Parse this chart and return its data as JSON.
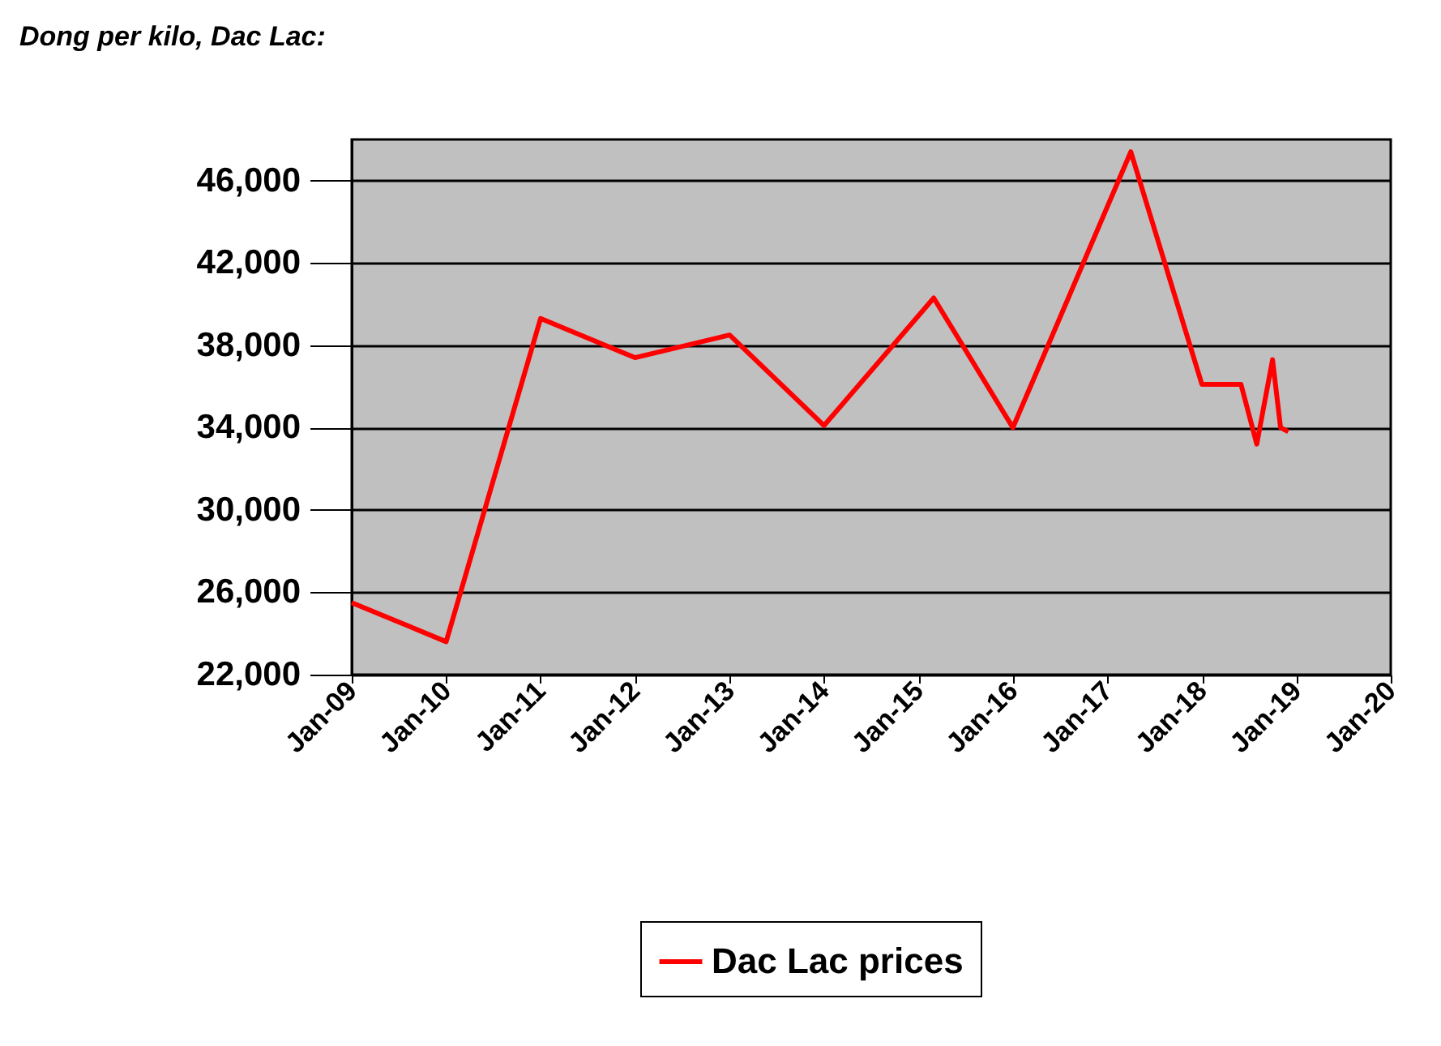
{
  "chart_data": {
    "type": "line",
    "title": "Dong per kilo, Dac Lac:",
    "x": [
      "2009-01",
      "2010-01",
      "2011-01",
      "2012-01",
      "2013-01",
      "2014-01",
      "2015-03",
      "2016-01",
      "2017-04",
      "2018-01",
      "2018-05",
      "2018-06",
      "2018-08",
      "2018-10",
      "2018-11",
      "2018-12"
    ],
    "series": [
      {
        "name": "Dac Lac prices",
        "color": "#ff0000",
        "values": [
          25500,
          23600,
          39300,
          37400,
          38500,
          34100,
          40300,
          34000,
          47400,
          36100,
          36100,
          36100,
          33200,
          37300,
          34000,
          33800
        ]
      }
    ],
    "xlim": [
      "2009-01",
      "2020-01"
    ],
    "xticks": [
      {
        "value": "2009-01",
        "label": "Jan-09"
      },
      {
        "value": "2010-01",
        "label": "Jan-10"
      },
      {
        "value": "2011-01",
        "label": "Jan-11"
      },
      {
        "value": "2012-01",
        "label": "Jan-12"
      },
      {
        "value": "2013-01",
        "label": "Jan-13"
      },
      {
        "value": "2014-01",
        "label": "Jan-14"
      },
      {
        "value": "2015-01",
        "label": "Jan-15"
      },
      {
        "value": "2016-01",
        "label": "Jan-16"
      },
      {
        "value": "2017-01",
        "label": "Jan-17"
      },
      {
        "value": "2018-01",
        "label": "Jan-18"
      },
      {
        "value": "2019-01",
        "label": "Jan-19"
      },
      {
        "value": "2020-01",
        "label": "Jan-20"
      }
    ],
    "ylim": [
      22000,
      48000
    ],
    "yticks": [
      {
        "value": 22000,
        "label": "22,000"
      },
      {
        "value": 26000,
        "label": "26,000"
      },
      {
        "value": 30000,
        "label": "30,000"
      },
      {
        "value": 34000,
        "label": "34,000"
      },
      {
        "value": 38000,
        "label": "38,000"
      },
      {
        "value": 42000,
        "label": "42,000"
      },
      {
        "value": 46000,
        "label": "46,000"
      }
    ],
    "grid": "y",
    "legend": "bottom",
    "marker": "none",
    "line_style": "solid"
  }
}
